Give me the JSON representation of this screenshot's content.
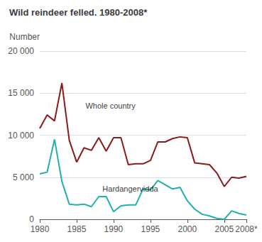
{
  "chart_data": {
    "type": "line",
    "title": "Wild reindeer felled. 1980-2008*",
    "ylabel": "Number",
    "x": [
      1980,
      1981,
      1982,
      1983,
      1984,
      1985,
      1986,
      1987,
      1988,
      1989,
      1990,
      1991,
      1992,
      1993,
      1994,
      1995,
      1996,
      1997,
      1998,
      1999,
      2000,
      2001,
      2002,
      2003,
      2004,
      2005,
      2006,
      2007,
      2008
    ],
    "series": [
      {
        "color": "#8B1A1A",
        "values": [
          10800,
          12400,
          11700,
          16200,
          9400,
          6800,
          8500,
          8200,
          9700,
          8100,
          9700,
          9700,
          6500,
          6600,
          6600,
          7000,
          9200,
          9200,
          9600,
          9800,
          9700,
          6700,
          6600,
          6500,
          5500,
          3900,
          5000,
          4900,
          5100
        ]
      },
      {
        "color": "#20B2AA",
        "values": [
          5400,
          5600,
          9500,
          4500,
          1800,
          1700,
          1800,
          1500,
          2700,
          2700,
          900,
          1600,
          1700,
          1700,
          3600,
          3500,
          4600,
          4100,
          3600,
          3800,
          2200,
          1200,
          600,
          400,
          100,
          0,
          1000,
          700,
          500
        ]
      }
    ],
    "annotations": [
      {
        "text": "Whole country",
        "x": 1986.2,
        "y": 13500
      },
      {
        "text": "Hardangervidda",
        "x": 1988.5,
        "y": 3600
      }
    ],
    "xlim": [
      1980,
      2008
    ],
    "xticks": [
      1980,
      1985,
      1990,
      1995,
      2000,
      2005,
      {
        "value": 2008,
        "label": "2008*"
      }
    ],
    "ylim": [
      0,
      20000
    ],
    "yticks": [
      0,
      {
        "value": 5000,
        "label": "5 000"
      },
      {
        "value": 10000,
        "label": "10 000"
      },
      {
        "value": 15000,
        "label": "15 000"
      },
      {
        "value": 20000,
        "label": "20 000"
      }
    ],
    "grid": true
  }
}
